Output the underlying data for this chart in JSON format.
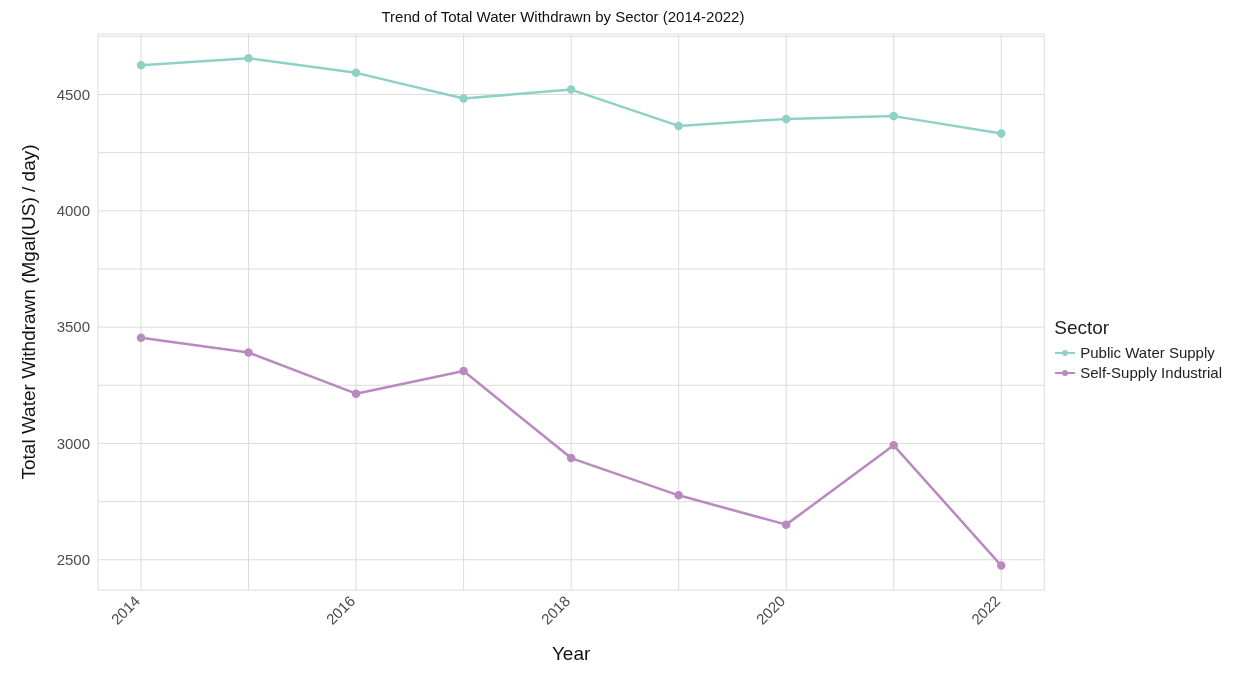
{
  "chart_data": {
    "type": "line",
    "title": "Trend of Total Water Withdrawn by Sector (2014-2022)",
    "xlabel": "Year",
    "ylabel": "Total Water Withdrawn (Mgal(US) / day)",
    "legend_title": "Sector",
    "x": [
      2014,
      2015,
      2016,
      2017,
      2018,
      2019,
      2020,
      2021,
      2022
    ],
    "series": [
      {
        "name": "Public Water Supply",
        "color": "#8fd1c6",
        "values": [
          4626,
          4656,
          4593,
          4483,
          4521,
          4365,
          4395,
          4407,
          4332
        ]
      },
      {
        "name": "Self-Supply Industrial",
        "color": "#b98ac0",
        "values": [
          3454,
          3391,
          3214,
          3311,
          2937,
          2777,
          2651,
          2992,
          2475
        ]
      }
    ],
    "xlim": [
      2013.6,
      2022.4
    ],
    "xticks": [
      2014,
      {
        "value": 2015,
        "label": null
      },
      2016,
      {
        "value": 2017,
        "label": null
      },
      2018,
      {
        "value": 2019,
        "label": null
      },
      2020,
      {
        "value": 2021,
        "label": null
      },
      2022
    ],
    "ylim": [
      2370,
      4760
    ],
    "yticks": [
      2500,
      {
        "value": 2750,
        "label": null
      },
      3000,
      {
        "value": 3250,
        "label": null
      },
      3500,
      {
        "value": 3750,
        "label": null
      },
      4000,
      {
        "value": 4250,
        "label": null
      },
      4500,
      {
        "value": 4750,
        "label": null
      }
    ],
    "grid": true,
    "legend": "right",
    "marker": "circle",
    "line_style": "solid"
  }
}
